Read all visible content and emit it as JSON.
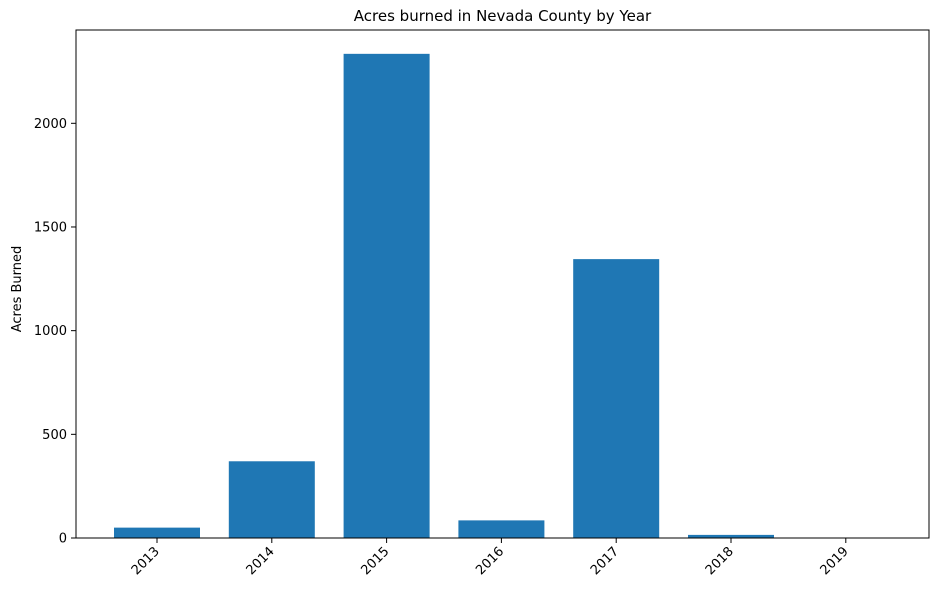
{
  "chart_data": {
    "type": "bar",
    "title": "Acres burned in Nevada County by Year",
    "xlabel": "",
    "ylabel": "Acres Burned",
    "categories": [
      "2013",
      "2014",
      "2015",
      "2016",
      "2017",
      "2018",
      "2019"
    ],
    "values": [
      50,
      370,
      2335,
      85,
      1345,
      15,
      2
    ],
    "ylim": [
      0,
      2450
    ],
    "yticks": [
      0,
      500,
      1000,
      1500,
      2000
    ],
    "bar_color": "#1f77b4",
    "grid": false,
    "legend": "none"
  }
}
